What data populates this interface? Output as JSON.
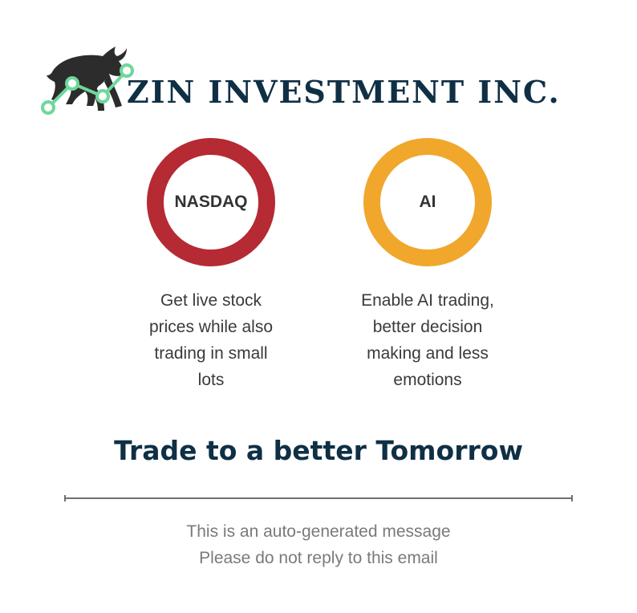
{
  "header": {
    "company_name": "ZIN INVESTMENT INC.",
    "logo_icon": "bull-stock-chart-icon"
  },
  "features": [
    {
      "label": "NASDAQ",
      "ring_color": "#b52a33",
      "description_lines": [
        "Get live stock",
        "prices while also",
        "trading in small",
        "lots"
      ]
    },
    {
      "label": "AI",
      "ring_color": "#f0a72c",
      "description_lines": [
        "Enable AI trading,",
        "better decision",
        "making and less",
        "emotions"
      ]
    }
  ],
  "tagline": "Trade to a better Tomorrow",
  "footer": {
    "lines": [
      "This is an auto-generated message",
      "Please do not reply to this email"
    ]
  },
  "colors": {
    "brand_navy": "#0f2f45",
    "chart_green": "#6fd79a",
    "bull": "#2c2c2c"
  }
}
